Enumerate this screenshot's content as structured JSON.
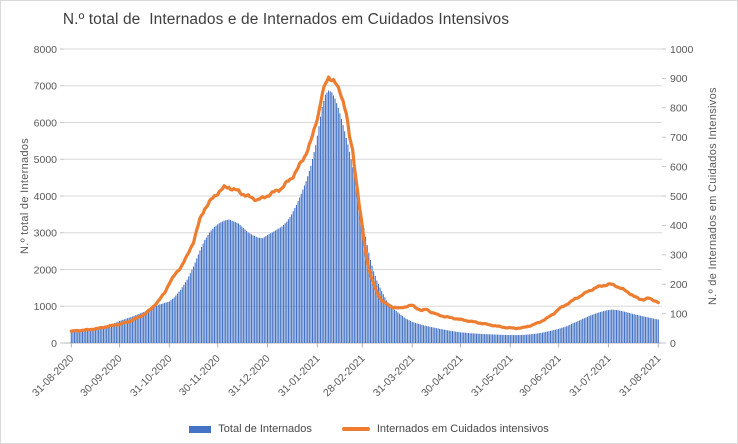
{
  "title": "N.º total de  Internados e de Internados em Cuidados Intensivos",
  "left_axis": {
    "label": "N.º total de Internados",
    "min": 0,
    "max": 8000,
    "step": 1000,
    "ticks": [
      0,
      1000,
      2000,
      3000,
      4000,
      5000,
      6000,
      7000,
      8000
    ]
  },
  "right_axis": {
    "label": "N.º de Internados em Cuidados Intensivos",
    "min": 0,
    "max": 1000,
    "step": 100,
    "ticks": [
      0,
      100,
      200,
      300,
      400,
      500,
      600,
      700,
      800,
      900,
      1000
    ]
  },
  "legend": {
    "items": [
      {
        "label": "Total de Internados",
        "color": "#4472C4",
        "type": "bar"
      },
      {
        "label": "Internados em Cuidados intensivos",
        "color": "#ED7D31",
        "type": "line"
      }
    ]
  },
  "chart_data": {
    "type": "bar+line",
    "x_is_daily": true,
    "days_total": 366,
    "x_tick_labels": [
      "31-08-2020",
      "30-09-2020",
      "31-10-2020",
      "30-11-2020",
      "31-12-2020",
      "31-01-2021",
      "28-02-2021",
      "31-03-2021",
      "30-04-2021",
      "31-05-2021",
      "30-06-2021",
      "31-07-2021",
      "31-08-2021"
    ],
    "x_tick_days": [
      0,
      30,
      61,
      91,
      122,
      153,
      181,
      212,
      242,
      273,
      303,
      334,
      365
    ],
    "grid": true,
    "colors": {
      "bars": "#4472C4",
      "line": "#ED7D31",
      "gridline": "#d9d9d9",
      "axisline": "#b3b3b3",
      "ticktext": "#595959"
    },
    "series": [
      {
        "name": "Total de Internados",
        "axis": "left",
        "type": "bar",
        "anchors": [
          [
            0,
            330
          ],
          [
            4,
            340
          ],
          [
            8,
            350
          ],
          [
            12,
            375
          ],
          [
            16,
            405
          ],
          [
            20,
            445
          ],
          [
            24,
            500
          ],
          [
            28,
            560
          ],
          [
            30,
            600
          ],
          [
            34,
            660
          ],
          [
            38,
            720
          ],
          [
            42,
            790
          ],
          [
            46,
            860
          ],
          [
            50,
            950
          ],
          [
            55,
            1050
          ],
          [
            58,
            1090
          ],
          [
            61,
            1130
          ],
          [
            64,
            1240
          ],
          [
            68,
            1450
          ],
          [
            72,
            1720
          ],
          [
            76,
            2080
          ],
          [
            80,
            2520
          ],
          [
            83,
            2800
          ],
          [
            86,
            3010
          ],
          [
            89,
            3160
          ],
          [
            92,
            3260
          ],
          [
            95,
            3330
          ],
          [
            98,
            3360
          ],
          [
            101,
            3310
          ],
          [
            104,
            3250
          ],
          [
            107,
            3130
          ],
          [
            110,
            3010
          ],
          [
            113,
            2930
          ],
          [
            116,
            2870
          ],
          [
            119,
            2850
          ],
          [
            122,
            2940
          ],
          [
            125,
            3010
          ],
          [
            128,
            3090
          ],
          [
            131,
            3170
          ],
          [
            134,
            3300
          ],
          [
            137,
            3500
          ],
          [
            140,
            3760
          ],
          [
            143,
            4060
          ],
          [
            146,
            4400
          ],
          [
            149,
            4820
          ],
          [
            152,
            5380
          ],
          [
            154,
            5900
          ],
          [
            156,
            6420
          ],
          [
            158,
            6760
          ],
          [
            160,
            6870
          ],
          [
            162,
            6820
          ],
          [
            164,
            6650
          ],
          [
            166,
            6400
          ],
          [
            168,
            6100
          ],
          [
            170,
            5760
          ],
          [
            172,
            5400
          ],
          [
            174,
            5000
          ],
          [
            176,
            4560
          ],
          [
            178,
            4100
          ],
          [
            180,
            3620
          ],
          [
            182,
            3120
          ],
          [
            184,
            2660
          ],
          [
            186,
            2260
          ],
          [
            188,
            1950
          ],
          [
            190,
            1700
          ],
          [
            193,
            1410
          ],
          [
            196,
            1160
          ],
          [
            199,
            990
          ],
          [
            202,
            870
          ],
          [
            205,
            765
          ],
          [
            208,
            665
          ],
          [
            212,
            575
          ],
          [
            216,
            520
          ],
          [
            220,
            472
          ],
          [
            224,
            432
          ],
          [
            228,
            396
          ],
          [
            232,
            362
          ],
          [
            236,
            330
          ],
          [
            242,
            292
          ],
          [
            248,
            266
          ],
          [
            254,
            250
          ],
          [
            260,
            236
          ],
          [
            266,
            226
          ],
          [
            273,
            216
          ],
          [
            278,
            216
          ],
          [
            283,
            226
          ],
          [
            288,
            248
          ],
          [
            293,
            282
          ],
          [
            298,
            330
          ],
          [
            303,
            385
          ],
          [
            308,
            455
          ],
          [
            313,
            555
          ],
          [
            318,
            655
          ],
          [
            323,
            755
          ],
          [
            328,
            830
          ],
          [
            332,
            880
          ],
          [
            336,
            910
          ],
          [
            340,
            892
          ],
          [
            344,
            852
          ],
          [
            348,
            805
          ],
          [
            352,
            762
          ],
          [
            356,
            722
          ],
          [
            360,
            684
          ],
          [
            363,
            655
          ],
          [
            365,
            640
          ]
        ]
      },
      {
        "name": "Internados em Cuidados intensivos",
        "axis": "right",
        "type": "line",
        "anchors": [
          [
            0,
            40
          ],
          [
            6,
            43
          ],
          [
            12,
            46
          ],
          [
            18,
            51
          ],
          [
            24,
            58
          ],
          [
            30,
            64
          ],
          [
            36,
            73
          ],
          [
            42,
            88
          ],
          [
            46,
            100
          ],
          [
            50,
            118
          ],
          [
            54,
            142
          ],
          [
            58,
            170
          ],
          [
            61,
            205
          ],
          [
            64,
            228
          ],
          [
            68,
            258
          ],
          [
            72,
            295
          ],
          [
            76,
            345
          ],
          [
            80,
            420
          ],
          [
            83,
            458
          ],
          [
            86,
            480
          ],
          [
            89,
            498
          ],
          [
            92,
            516
          ],
          [
            95,
            528
          ],
          [
            98,
            530
          ],
          [
            101,
            522
          ],
          [
            104,
            516
          ],
          [
            107,
            506
          ],
          [
            110,
            498
          ],
          [
            113,
            492
          ],
          [
            116,
            488
          ],
          [
            119,
            492
          ],
          [
            122,
            502
          ],
          [
            125,
            510
          ],
          [
            128,
            518
          ],
          [
            131,
            528
          ],
          [
            134,
            545
          ],
          [
            137,
            562
          ],
          [
            140,
            585
          ],
          [
            143,
            615
          ],
          [
            146,
            645
          ],
          [
            149,
            685
          ],
          [
            152,
            745
          ],
          [
            154,
            790
          ],
          [
            156,
            845
          ],
          [
            158,
            880
          ],
          [
            160,
            905
          ],
          [
            161,
            900
          ],
          [
            163,
            893
          ],
          [
            165,
            875
          ],
          [
            167,
            855
          ],
          [
            169,
            825
          ],
          [
            171,
            780
          ],
          [
            173,
            700
          ],
          [
            175,
            655
          ],
          [
            177,
            560
          ],
          [
            179,
            470
          ],
          [
            181,
            390
          ],
          [
            183,
            310
          ],
          [
            185,
            255
          ],
          [
            187,
            215
          ],
          [
            190,
            172
          ],
          [
            193,
            145
          ],
          [
            196,
            132
          ],
          [
            200,
            122
          ],
          [
            204,
            118
          ],
          [
            208,
            124
          ],
          [
            212,
            128
          ],
          [
            215,
            118
          ],
          [
            218,
            110
          ],
          [
            221,
            115
          ],
          [
            224,
            104
          ],
          [
            228,
            96
          ],
          [
            232,
            90
          ],
          [
            236,
            86
          ],
          [
            242,
            80
          ],
          [
            248,
            74
          ],
          [
            254,
            68
          ],
          [
            260,
            62
          ],
          [
            266,
            56
          ],
          [
            271,
            52
          ],
          [
            276,
            50
          ],
          [
            281,
            52
          ],
          [
            286,
            60
          ],
          [
            291,
            70
          ],
          [
            296,
            85
          ],
          [
            300,
            100
          ],
          [
            303,
            115
          ],
          [
            307,
            128
          ],
          [
            311,
            142
          ],
          [
            315,
            155
          ],
          [
            319,
            168
          ],
          [
            323,
            180
          ],
          [
            327,
            190
          ],
          [
            331,
            196
          ],
          [
            335,
            200
          ],
          [
            338,
            196
          ],
          [
            341,
            188
          ],
          [
            344,
            180
          ],
          [
            347,
            170
          ],
          [
            350,
            158
          ],
          [
            353,
            150
          ],
          [
            356,
            148
          ],
          [
            359,
            152
          ],
          [
            361,
            148
          ],
          [
            363,
            144
          ],
          [
            365,
            138
          ]
        ]
      }
    ]
  }
}
